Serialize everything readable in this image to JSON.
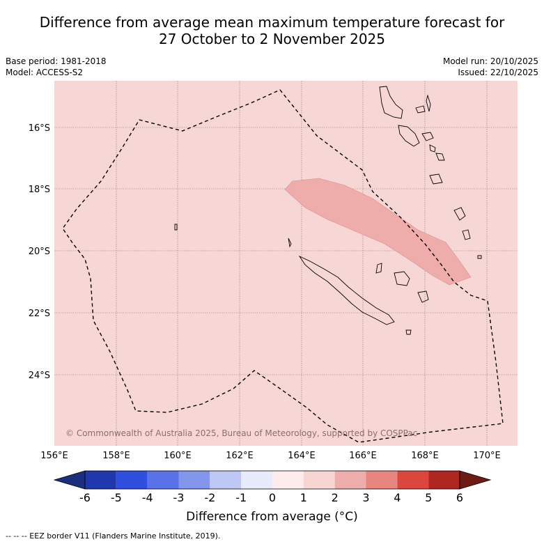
{
  "title_line1": "Difference from average mean maximum temperature forecast for",
  "title_line2": "27 October to 2 November 2025",
  "base_period": "Base period: 1981-2018",
  "model": "Model: ACCESS-S2",
  "model_run": "Model run: 20/10/2025",
  "issued": "Issued: 22/10/2025",
  "copyright": "© Commonwealth of Australia 2025, Bureau of Meteorology, supported by COSPPac",
  "lat_labels": [
    "16°S",
    "18°S",
    "20°S",
    "22°S",
    "24°S"
  ],
  "lon_labels": [
    "156°E",
    "158°E",
    "160°E",
    "162°E",
    "164°E",
    "166°E",
    "168°E",
    "170°E"
  ],
  "colorbar": {
    "ticks": [
      "-6",
      "-5",
      "-4",
      "-3",
      "-2",
      "-1",
      "0",
      "1",
      "2",
      "3",
      "4",
      "5",
      "6"
    ],
    "colors": [
      "#1b2f7e",
      "#2038ae",
      "#2f4fe0",
      "#5a72e8",
      "#8396ec",
      "#bfc7f4",
      "#e7ebfb",
      "#fdeceb",
      "#f6d5d3",
      "#eeadab",
      "#e7857f",
      "#dc463c",
      "#ad2620",
      "#6e1a15"
    ],
    "title": "Difference from average (°C)"
  },
  "footnote": "--  --  -- EEZ border V11 (Flanders Marine Institute, 2019).",
  "colors": {
    "background_anomaly": "#f6d7d5",
    "warm_anomaly": "#eeadab"
  },
  "legend_ref": "EEZ border"
}
